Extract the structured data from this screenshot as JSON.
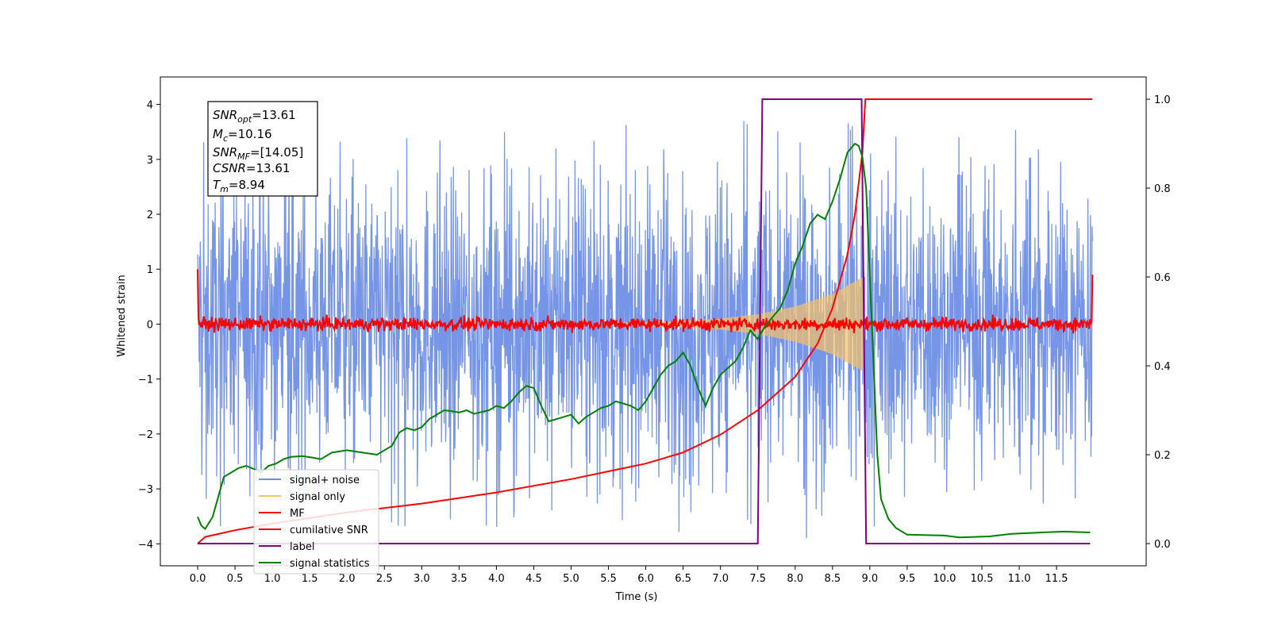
{
  "chart_data": {
    "type": "line",
    "xlabel": "Time (s)",
    "ylabel": "Whitened strain",
    "xlim": [
      -0.5,
      12.7
    ],
    "ylim": [
      -4.4,
      4.5
    ],
    "y2lim": [
      -0.05,
      1.05
    ],
    "x_ticks": [
      "0.0",
      "0.5",
      "1.0",
      "1.5",
      "2.0",
      "2.5",
      "3.0",
      "3.5",
      "4.0",
      "4.5",
      "5.0",
      "5.5",
      "6.0",
      "6.5",
      "7.0",
      "7.5",
      "8.0",
      "8.5",
      "9.0",
      "9.5",
      "10.0",
      "10.5",
      "11.0",
      "11.5"
    ],
    "y_ticks": [
      "4",
      "3",
      "2",
      "1",
      "0",
      "−1",
      "−2",
      "−3",
      "−4"
    ],
    "y2_ticks": [
      "1.0",
      "0.8",
      "0.6",
      "0.4",
      "0.2",
      "0.0"
    ],
    "info_box": {
      "snr_opt": {
        "sym": "SNR",
        "sub": "opt",
        "val": "=13.61"
      },
      "mc": {
        "sym": "M",
        "sub": "c",
        "val": "=10.16"
      },
      "snr_mf": {
        "sym": "SNR",
        "sub": "MF",
        "val": "=[14.05]"
      },
      "csnr": {
        "sym": "CSNR",
        "sub": "",
        "val": "=13.61"
      },
      "tm": {
        "sym": "T",
        "sub": "m",
        "val": "=8.94"
      }
    },
    "legend": [
      "signal+ noise",
      "signal only",
      "MF",
      "cumilative SNR",
      "label",
      "signal statistics"
    ],
    "legend_position": "lower-left",
    "colors": {
      "noise": "#6f8fe6",
      "signal": "#f5c266",
      "mf": "#ff0000",
      "csnr": "#ff0000",
      "label": "#800080",
      "stat": "#008000"
    },
    "series": [
      {
        "name": "signal+ noise",
        "axis": "left",
        "description_values": {
          "x_range": [
            0.0,
            11.98
          ],
          "amplitude_typical": 2.3,
          "amplitude_max": 3.7
        }
      },
      {
        "name": "signal only",
        "axis": "left",
        "chirp_end_time": 8.94,
        "envelope": [
          [
            5.5,
            0.02
          ],
          [
            6.0,
            0.04
          ],
          [
            6.5,
            0.06
          ],
          [
            7.0,
            0.1
          ],
          [
            7.5,
            0.18
          ],
          [
            8.0,
            0.32
          ],
          [
            8.5,
            0.55
          ],
          [
            8.9,
            0.85
          ],
          [
            8.94,
            0.0
          ]
        ]
      },
      {
        "name": "MF",
        "axis": "left",
        "x_range": [
          0.0,
          11.98
        ],
        "edge_value": 1.0,
        "noise_amplitude": 0.12
      },
      {
        "name": "cumilative SNR",
        "axis": "right",
        "points": [
          [
            0.0,
            0.0
          ],
          [
            0.1,
            0.015
          ],
          [
            0.5,
            0.03
          ],
          [
            1.0,
            0.045
          ],
          [
            2.0,
            0.07
          ],
          [
            3.0,
            0.09
          ],
          [
            4.0,
            0.115
          ],
          [
            5.0,
            0.145
          ],
          [
            6.0,
            0.18
          ],
          [
            6.5,
            0.205
          ],
          [
            7.0,
            0.245
          ],
          [
            7.5,
            0.3
          ],
          [
            8.0,
            0.375
          ],
          [
            8.3,
            0.45
          ],
          [
            8.5,
            0.53
          ],
          [
            8.7,
            0.65
          ],
          [
            8.8,
            0.74
          ],
          [
            8.9,
            0.88
          ],
          [
            8.94,
            1.0
          ],
          [
            11.98,
            1.0
          ]
        ]
      },
      {
        "name": "label",
        "axis": "right",
        "points": [
          [
            0.0,
            0.0
          ],
          [
            7.5,
            0.0
          ],
          [
            7.56,
            1.0
          ],
          [
            8.89,
            1.0
          ],
          [
            8.95,
            0.0
          ],
          [
            11.95,
            0.0
          ]
        ]
      },
      {
        "name": "signal statistics",
        "axis": "right",
        "points": [
          [
            0.0,
            0.06
          ],
          [
            0.05,
            0.04
          ],
          [
            0.1,
            0.033
          ],
          [
            0.2,
            0.06
          ],
          [
            0.3,
            0.12
          ],
          [
            0.35,
            0.15
          ],
          [
            0.45,
            0.16
          ],
          [
            0.55,
            0.17
          ],
          [
            0.65,
            0.175
          ],
          [
            0.75,
            0.168
          ],
          [
            0.85,
            0.16
          ],
          [
            0.95,
            0.175
          ],
          [
            1.05,
            0.18
          ],
          [
            1.15,
            0.19
          ],
          [
            1.25,
            0.195
          ],
          [
            1.4,
            0.197
          ],
          [
            1.55,
            0.193
          ],
          [
            1.65,
            0.19
          ],
          [
            1.8,
            0.205
          ],
          [
            2.0,
            0.21
          ],
          [
            2.2,
            0.205
          ],
          [
            2.4,
            0.2
          ],
          [
            2.6,
            0.22
          ],
          [
            2.7,
            0.25
          ],
          [
            2.8,
            0.26
          ],
          [
            2.9,
            0.255
          ],
          [
            3.0,
            0.262
          ],
          [
            3.1,
            0.28
          ],
          [
            3.2,
            0.29
          ],
          [
            3.3,
            0.3
          ],
          [
            3.4,
            0.298
          ],
          [
            3.5,
            0.295
          ],
          [
            3.6,
            0.3
          ],
          [
            3.7,
            0.292
          ],
          [
            3.8,
            0.296
          ],
          [
            3.9,
            0.3
          ],
          [
            4.0,
            0.31
          ],
          [
            4.1,
            0.305
          ],
          [
            4.2,
            0.32
          ],
          [
            4.3,
            0.34
          ],
          [
            4.4,
            0.355
          ],
          [
            4.5,
            0.35
          ],
          [
            4.6,
            0.31
          ],
          [
            4.7,
            0.275
          ],
          [
            4.8,
            0.28
          ],
          [
            4.9,
            0.285
          ],
          [
            5.0,
            0.29
          ],
          [
            5.1,
            0.27
          ],
          [
            5.2,
            0.285
          ],
          [
            5.3,
            0.295
          ],
          [
            5.4,
            0.305
          ],
          [
            5.5,
            0.31
          ],
          [
            5.6,
            0.32
          ],
          [
            5.7,
            0.315
          ],
          [
            5.8,
            0.31
          ],
          [
            5.9,
            0.3
          ],
          [
            6.0,
            0.32
          ],
          [
            6.1,
            0.35
          ],
          [
            6.2,
            0.38
          ],
          [
            6.3,
            0.4
          ],
          [
            6.4,
            0.41
          ],
          [
            6.5,
            0.43
          ],
          [
            6.6,
            0.4
          ],
          [
            6.7,
            0.35
          ],
          [
            6.8,
            0.31
          ],
          [
            6.9,
            0.35
          ],
          [
            7.0,
            0.38
          ],
          [
            7.1,
            0.395
          ],
          [
            7.2,
            0.41
          ],
          [
            7.3,
            0.44
          ],
          [
            7.4,
            0.48
          ],
          [
            7.45,
            0.47
          ],
          [
            7.5,
            0.46
          ],
          [
            7.6,
            0.49
          ],
          [
            7.7,
            0.51
          ],
          [
            7.8,
            0.53
          ],
          [
            7.9,
            0.57
          ],
          [
            8.0,
            0.63
          ],
          [
            8.1,
            0.67
          ],
          [
            8.2,
            0.72
          ],
          [
            8.3,
            0.74
          ],
          [
            8.4,
            0.73
          ],
          [
            8.5,
            0.77
          ],
          [
            8.6,
            0.82
          ],
          [
            8.65,
            0.85
          ],
          [
            8.7,
            0.88
          ],
          [
            8.8,
            0.9
          ],
          [
            8.85,
            0.895
          ],
          [
            8.9,
            0.87
          ],
          [
            8.95,
            0.8
          ],
          [
            9.0,
            0.6
          ],
          [
            9.05,
            0.4
          ],
          [
            9.1,
            0.2
          ],
          [
            9.15,
            0.1
          ],
          [
            9.25,
            0.055
          ],
          [
            9.35,
            0.035
          ],
          [
            9.5,
            0.02
          ],
          [
            10.0,
            0.018
          ],
          [
            10.2,
            0.014
          ],
          [
            10.6,
            0.016
          ],
          [
            10.9,
            0.022
          ],
          [
            11.3,
            0.025
          ],
          [
            11.6,
            0.027
          ],
          [
            11.95,
            0.025
          ]
        ]
      }
    ]
  }
}
